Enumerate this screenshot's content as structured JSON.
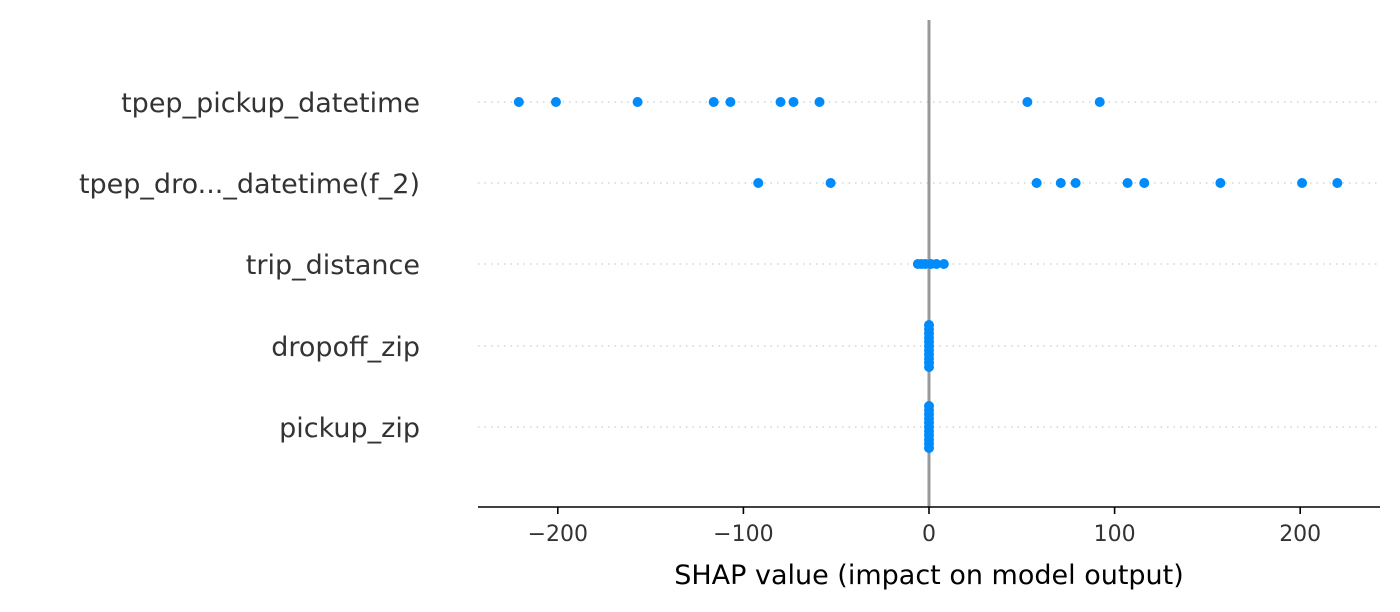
{
  "chart_data": {
    "type": "scatter",
    "subtype": "shap-summary-beeswarm",
    "title": "",
    "xlabel": "SHAP value (impact on model output)",
    "ylabel": "",
    "xlim": [
      -243,
      243
    ],
    "x_ticks": [
      -200,
      -100,
      0,
      100,
      200
    ],
    "x_tick_labels": [
      "−200",
      "−100",
      "0",
      "100",
      "200"
    ],
    "grid": "dotted horizontal guide per feature",
    "zero_line": true,
    "legend": "none",
    "point_color": "#008bfb",
    "features": [
      {
        "name": "tpep_pickup_datetime",
        "values": [
          -221,
          -201,
          -157,
          -116,
          -107,
          -80,
          -73,
          -59,
          53,
          92
        ]
      },
      {
        "name": "tpep_dro..._datetime(f_2)",
        "values": [
          -92,
          -53,
          58,
          71,
          79,
          107,
          116,
          157,
          201,
          220
        ]
      },
      {
        "name": "trip_distance",
        "values": [
          -6,
          -4,
          -2,
          1,
          4,
          8
        ]
      },
      {
        "name": "dropoff_zip",
        "values": [
          0,
          0,
          0,
          0,
          0,
          0,
          0,
          0,
          0,
          0,
          0
        ]
      },
      {
        "name": "pickup_zip",
        "values": [
          0,
          0,
          0,
          0,
          0,
          0,
          0,
          0,
          0,
          0,
          0
        ]
      }
    ]
  },
  "colors": {
    "point": "#008bfb",
    "zero_line": "#999999",
    "axis": "#000000",
    "guide": "#cccccc",
    "text": "#333333"
  }
}
